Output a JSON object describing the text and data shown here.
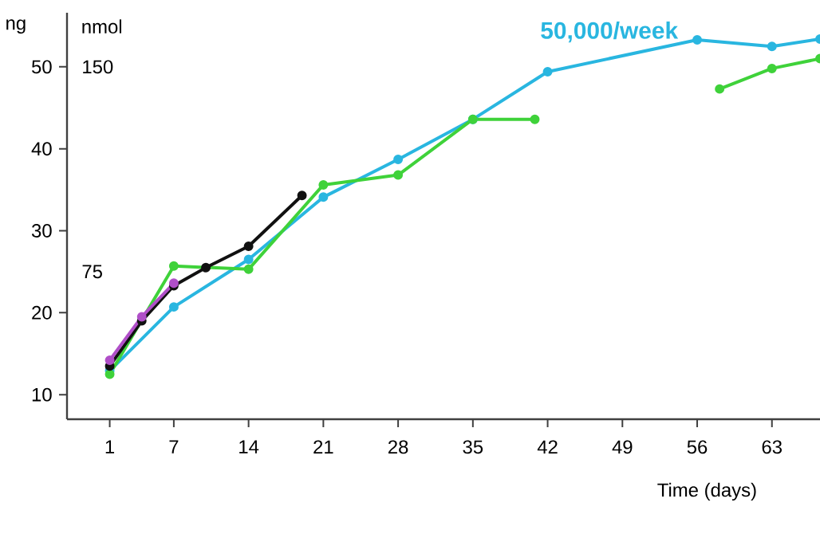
{
  "chart_data": {
    "type": "line",
    "xlabel": "Time (days)",
    "ylabel": "ng",
    "y2label": "nmol",
    "xlim": [
      -3,
      67.5
    ],
    "xticks": [
      1,
      7,
      14,
      21,
      28,
      35,
      42,
      49,
      56,
      63
    ],
    "ylim": [
      7,
      56.6
    ],
    "yticks": [
      10,
      20,
      30,
      40,
      50
    ],
    "y2lim": [
      21,
      169.8
    ],
    "y2ticks": [
      75,
      150
    ],
    "marker": "circle",
    "line_style": "solid",
    "grid": false,
    "annotations": [
      "50,000/week"
    ],
    "series": [
      {
        "color": "#29b6e0",
        "x": [
          1,
          7,
          14,
          21,
          28,
          35,
          42,
          56,
          63,
          67.5
        ],
        "values": [
          12.9,
          20.7,
          26.5,
          34.1,
          38.7,
          43.6,
          49.4,
          53.3,
          52.5,
          53.4
        ]
      },
      {
        "color": "#3fd23a",
        "x": [
          1,
          7,
          14,
          21,
          28,
          35,
          40.8,
          50,
          58.1,
          63,
          67.5
        ],
        "values": [
          12.5,
          25.7,
          25.3,
          35.6,
          36.8,
          43.6,
          43.6,
          null,
          47.3,
          49.8,
          51.0
        ]
      },
      {
        "color": "#111111",
        "x": [
          1,
          4,
          7,
          10,
          14,
          19
        ],
        "values": [
          13.5,
          19.0,
          23.3,
          25.5,
          28.1,
          34.3
        ]
      },
      {
        "color": "#b04fc8",
        "x": [
          1,
          4,
          7
        ],
        "values": [
          14.2,
          19.5,
          23.6
        ]
      }
    ]
  }
}
